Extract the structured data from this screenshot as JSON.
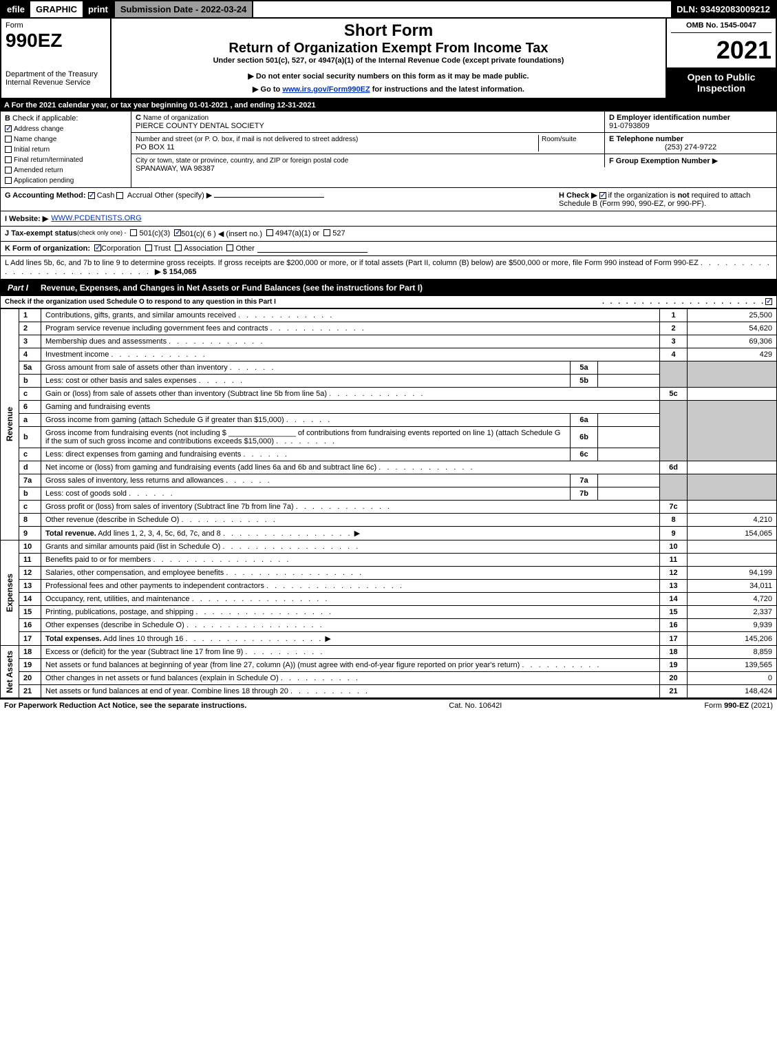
{
  "top": {
    "efile": "efile",
    "graphic": "GRAPHIC",
    "print": "print",
    "sub_date_label": "Submission Date - 2022-03-24",
    "dln": "DLN: 93492083009212"
  },
  "header": {
    "form_label": "Form",
    "form_number": "990EZ",
    "short_form": "Short Form",
    "return_title": "Return of Organization Exempt From Income Tax",
    "under_section": "Under section 501(c), 527, or 4947(a)(1) of the Internal Revenue Code (except private foundations)",
    "dept": "Department of the Treasury\nInternal Revenue Service",
    "do_not_enter": "▶ Do not enter social security numbers on this form as it may be made public.",
    "goto": "▶ Go to ",
    "goto_link": "www.irs.gov/Form990EZ",
    "goto_tail": " for instructions and the latest information.",
    "omb": "OMB No. 1545-0047",
    "year": "2021",
    "open": "Open to Public Inspection"
  },
  "lineA": "A  For the 2021 calendar year, or tax year beginning 01-01-2021 , and ending 12-31-2021",
  "sectionB": {
    "b_label": "B",
    "check_if": "Check if applicable:",
    "items": [
      {
        "label": "Address change",
        "checked": true
      },
      {
        "label": "Name change",
        "checked": false
      },
      {
        "label": "Initial return",
        "checked": false
      },
      {
        "label": "Final return/terminated",
        "checked": false
      },
      {
        "label": "Amended return",
        "checked": false
      },
      {
        "label": "Application pending",
        "checked": false
      }
    ],
    "c_label": "C",
    "c_name_label": "Name of organization",
    "c_name": "PIERCE COUNTY DENTAL SOCIETY",
    "c_addr_label": "Number and street (or P. O. box, if mail is not delivered to street address)",
    "c_room": "Room/suite",
    "c_addr": "PO BOX 11",
    "c_city_label": "City or town, state or province, country, and ZIP or foreign postal code",
    "c_city": "SPANAWAY, WA  98387",
    "d_label": "D Employer identification number",
    "d_ein": "91-0793809",
    "e_label": "E Telephone number",
    "e_phone": "(253) 274-9722",
    "f_label": "F Group Exemption Number",
    "f_arrow": "▶"
  },
  "lineG": {
    "label": "G Accounting Method:",
    "cash": "Cash",
    "accrual": "Accrual",
    "other": "Other (specify) ▶",
    "h_label": "H   Check ▶",
    "h_text": "if the organization is ",
    "h_not": "not",
    "h_text2": " required to attach Schedule B (Form 990, 990-EZ, or 990-PF)."
  },
  "lineI": {
    "label": "I Website: ▶",
    "url": "WWW.PCDENTISTS.ORG"
  },
  "lineJ": {
    "label": "J Tax-exempt status",
    "sub": "(check only one) -",
    "o1": "501(c)(3)",
    "o2": "501(c)( 6 ) ◀ (insert no.)",
    "o3": "4947(a)(1) or",
    "o4": "527"
  },
  "lineK": {
    "label": "K Form of organization:",
    "corp": "Corporation",
    "trust": "Trust",
    "assoc": "Association",
    "other": "Other"
  },
  "lineL": {
    "text": "L Add lines 5b, 6c, and 7b to line 9 to determine gross receipts. If gross receipts are $200,000 or more, or if total assets (Part II, column (B) below) are $500,000 or more, file Form 990 instead of Form 990-EZ",
    "amount": "▶ $ 154,065"
  },
  "partI": {
    "tag": "Part I",
    "title": "Revenue, Expenses, and Changes in Net Assets or Fund Balances (see the instructions for Part I)",
    "sub": "Check if the organization used Schedule O to respond to any question in this Part I"
  },
  "sections": {
    "revenue_label": "Revenue",
    "expenses_label": "Expenses",
    "netassets_label": "Net Assets"
  },
  "rows_rev": [
    {
      "num": "1",
      "desc": "Contributions, gifts, grants, and similar amounts received",
      "rnum": "1",
      "rval": "25,500"
    },
    {
      "num": "2",
      "desc": "Program service revenue including government fees and contracts",
      "rnum": "2",
      "rval": "54,620"
    },
    {
      "num": "3",
      "desc": "Membership dues and assessments",
      "rnum": "3",
      "rval": "69,306"
    },
    {
      "num": "4",
      "desc": "Investment income",
      "rnum": "4",
      "rval": "429"
    }
  ],
  "row5a": {
    "num": "5a",
    "desc": "Gross amount from sale of assets other than inventory",
    "snum": "5a"
  },
  "row5b": {
    "num": "b",
    "desc": "Less: cost or other basis and sales expenses",
    "snum": "5b"
  },
  "row5c": {
    "num": "c",
    "desc": "Gain or (loss) from sale of assets other than inventory (Subtract line 5b from line 5a)",
    "rnum": "5c"
  },
  "row6": {
    "num": "6",
    "desc": "Gaming and fundraising events"
  },
  "row6a": {
    "num": "a",
    "desc": "Gross income from gaming (attach Schedule G if greater than $15,000)",
    "snum": "6a"
  },
  "row6b": {
    "num": "b",
    "desc1": "Gross income from fundraising events (not including $",
    "desc2": "of contributions from fundraising events reported on line 1) (attach Schedule G if the sum of such gross income and contributions exceeds $15,000)",
    "snum": "6b"
  },
  "row6c": {
    "num": "c",
    "desc": "Less: direct expenses from gaming and fundraising events",
    "snum": "6c"
  },
  "row6d": {
    "num": "d",
    "desc": "Net income or (loss) from gaming and fundraising events (add lines 6a and 6b and subtract line 6c)",
    "rnum": "6d"
  },
  "row7a": {
    "num": "7a",
    "desc": "Gross sales of inventory, less returns and allowances",
    "snum": "7a"
  },
  "row7b": {
    "num": "b",
    "desc": "Less: cost of goods sold",
    "snum": "7b"
  },
  "row7c": {
    "num": "c",
    "desc": "Gross profit or (loss) from sales of inventory (Subtract line 7b from line 7a)",
    "rnum": "7c"
  },
  "row8": {
    "num": "8",
    "desc": "Other revenue (describe in Schedule O)",
    "rnum": "8",
    "rval": "4,210"
  },
  "row9": {
    "num": "9",
    "desc": "Total revenue. Add lines 1, 2, 3, 4, 5c, 6d, 7c, and 8",
    "rnum": "9",
    "rval": "154,065",
    "bold": true
  },
  "rows_exp": [
    {
      "num": "10",
      "desc": "Grants and similar amounts paid (list in Schedule O)",
      "rnum": "10",
      "rval": ""
    },
    {
      "num": "11",
      "desc": "Benefits paid to or for members",
      "rnum": "11",
      "rval": ""
    },
    {
      "num": "12",
      "desc": "Salaries, other compensation, and employee benefits",
      "rnum": "12",
      "rval": "94,199"
    },
    {
      "num": "13",
      "desc": "Professional fees and other payments to independent contractors",
      "rnum": "13",
      "rval": "34,011"
    },
    {
      "num": "14",
      "desc": "Occupancy, rent, utilities, and maintenance",
      "rnum": "14",
      "rval": "4,720"
    },
    {
      "num": "15",
      "desc": "Printing, publications, postage, and shipping",
      "rnum": "15",
      "rval": "2,337"
    },
    {
      "num": "16",
      "desc": "Other expenses (describe in Schedule O)",
      "rnum": "16",
      "rval": "9,939"
    },
    {
      "num": "17",
      "desc": "Total expenses. Add lines 10 through 16",
      "rnum": "17",
      "rval": "145,206",
      "bold": true
    }
  ],
  "rows_net": [
    {
      "num": "18",
      "desc": "Excess or (deficit) for the year (Subtract line 17 from line 9)",
      "rnum": "18",
      "rval": "8,859"
    },
    {
      "num": "19",
      "desc": "Net assets or fund balances at beginning of year (from line 27, column (A)) (must agree with end-of-year figure reported on prior year's return)",
      "rnum": "19",
      "rval": "139,565"
    },
    {
      "num": "20",
      "desc": "Other changes in net assets or fund balances (explain in Schedule O)",
      "rnum": "20",
      "rval": "0"
    },
    {
      "num": "21",
      "desc": "Net assets or fund balances at end of year. Combine lines 18 through 20",
      "rnum": "21",
      "rval": "148,424"
    }
  ],
  "footer": {
    "left": "For Paperwork Reduction Act Notice, see the separate instructions.",
    "mid": "Cat. No. 10642I",
    "right_pre": "Form ",
    "right_form": "990-EZ",
    "right_suf": " (2021)"
  }
}
